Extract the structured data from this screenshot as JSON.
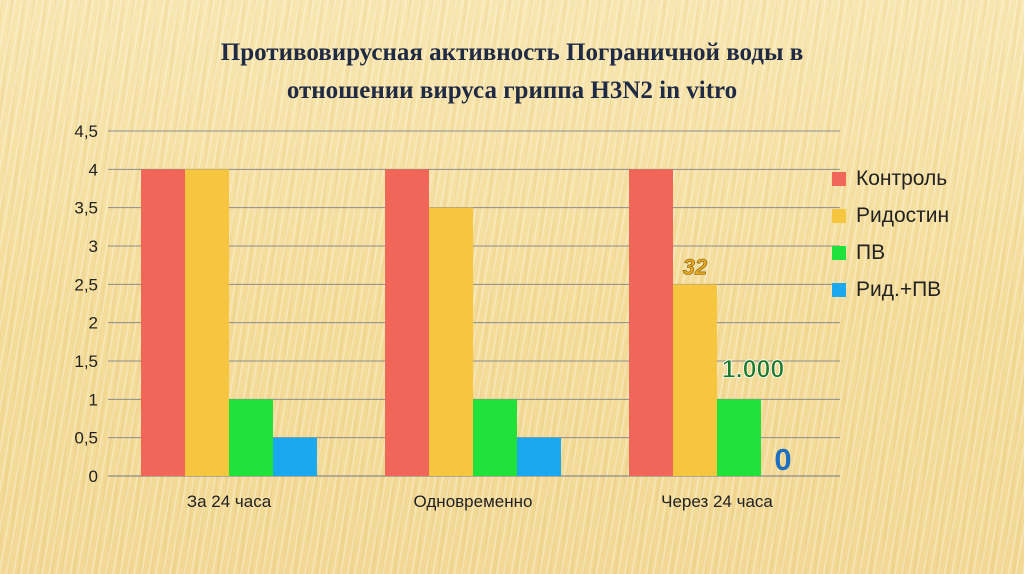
{
  "title": {
    "line1": "Противовирусная активность  Пограничной воды  в",
    "line2": "отношении вируса гриппа H3N2 in vitro"
  },
  "chart_data": {
    "type": "bar",
    "categories": [
      "За 24 часа",
      "Одновременно",
      "Через 24 часа"
    ],
    "series": [
      {
        "name": "Контроль",
        "color": "#f0675a",
        "values": [
          4,
          4,
          4
        ]
      },
      {
        "name": "Ридостин",
        "color": "#f7c640",
        "values": [
          4,
          3.5,
          2.5
        ]
      },
      {
        "name": "ПВ",
        "color": "#21e23a",
        "values": [
          1,
          1,
          1
        ]
      },
      {
        "name": "Рид.+ПВ",
        "color": "#1aa9ee",
        "values": [
          0.5,
          0.5,
          0
        ]
      }
    ],
    "ylim": [
      0,
      4.5
    ],
    "yticks": [
      "0",
      "0,5",
      "1",
      "1,5",
      "2",
      "2,5",
      "3",
      "3,5",
      "4",
      "4,5"
    ],
    "grid": true,
    "legend_position": "right",
    "annotations": [
      {
        "text": "32",
        "color": "#e8a820"
      },
      {
        "text": "1.000",
        "color": "#1a7a2a"
      },
      {
        "text": "0",
        "color": "#1e6fc0"
      }
    ]
  }
}
